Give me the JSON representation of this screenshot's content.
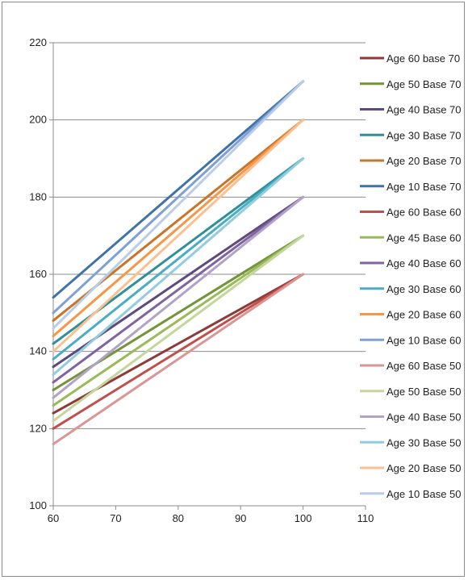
{
  "chart_data": {
    "type": "line",
    "title": "",
    "xlabel": "",
    "ylabel": "",
    "xlim": [
      60,
      110
    ],
    "ylim": [
      100,
      220
    ],
    "xticks": [
      60,
      70,
      80,
      90,
      100,
      110
    ],
    "yticks": [
      100,
      120,
      140,
      160,
      180,
      200,
      220
    ],
    "grid": "horizontal",
    "legend_position": "right",
    "series": [
      {
        "name": "Age 60 base 70",
        "color": "#8e3a39",
        "x": [
          60,
          100
        ],
        "y": [
          124,
          160
        ]
      },
      {
        "name": "Age 50 Base 70",
        "color": "#759439",
        "x": [
          60,
          100
        ],
        "y": [
          130,
          170
        ]
      },
      {
        "name": "Age 40 Base 70",
        "color": "#5e4a7e",
        "x": [
          60,
          100
        ],
        "y": [
          136,
          180
        ]
      },
      {
        "name": "Age 30 Base 70",
        "color": "#2e8f99",
        "x": [
          60,
          100
        ],
        "y": [
          142,
          190
        ]
      },
      {
        "name": "Age 20 Base 70",
        "color": "#c8742a",
        "x": [
          60,
          100
        ],
        "y": [
          148,
          200
        ]
      },
      {
        "name": "Age 10 Base 70",
        "color": "#3f72a9",
        "x": [
          60,
          100
        ],
        "y": [
          154,
          210
        ]
      },
      {
        "name": "Age 60 Base 60",
        "color": "#bf4f4c",
        "x": [
          60,
          100
        ],
        "y": [
          120,
          160
        ]
      },
      {
        "name": "Age 45 Base 60",
        "color": "#9aba59",
        "x": [
          60,
          100
        ],
        "y": [
          126,
          170
        ]
      },
      {
        "name": "Age 40 Base 60",
        "color": "#8064a2",
        "x": [
          60,
          100
        ],
        "y": [
          132,
          180
        ]
      },
      {
        "name": "Age 30 Base 60",
        "color": "#4bacc6",
        "x": [
          60,
          100
        ],
        "y": [
          138,
          190
        ]
      },
      {
        "name": "Age 20 Base 60",
        "color": "#f79646",
        "x": [
          60,
          100
        ],
        "y": [
          144,
          200
        ]
      },
      {
        "name": "Age 10 Base 60",
        "color": "#7f9fd6",
        "x": [
          60,
          100
        ],
        "y": [
          150,
          210
        ]
      },
      {
        "name": "Age 60 Base 50",
        "color": "#d99694",
        "x": [
          60,
          100
        ],
        "y": [
          116,
          160
        ]
      },
      {
        "name": "Age 50 Base 50",
        "color": "#c3d69b",
        "x": [
          60,
          100
        ],
        "y": [
          122,
          170
        ]
      },
      {
        "name": "Age 40 Base 50",
        "color": "#b2a2c7",
        "x": [
          60,
          100
        ],
        "y": [
          128,
          180
        ]
      },
      {
        "name": "Age 30 Base 50",
        "color": "#93cddd",
        "x": [
          60,
          100
        ],
        "y": [
          134,
          190
        ]
      },
      {
        "name": "Age 20 Base 50",
        "color": "#fac090",
        "x": [
          60,
          100
        ],
        "y": [
          140,
          200
        ]
      },
      {
        "name": "Age 10 Base 50",
        "color": "#b9cde5",
        "x": [
          60,
          100
        ],
        "y": [
          146,
          210
        ]
      }
    ]
  }
}
